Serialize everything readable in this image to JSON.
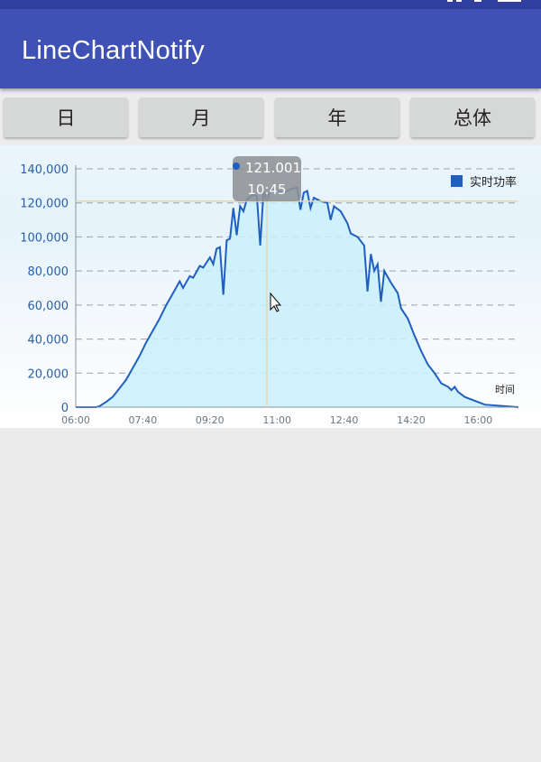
{
  "status_bar": {
    "icons": [
      "signal-icon",
      "battery-icon"
    ]
  },
  "app_bar": {
    "title": "LineChartNotify"
  },
  "tabs": [
    {
      "label": "日"
    },
    {
      "label": "月"
    },
    {
      "label": "年"
    },
    {
      "label": "总体"
    }
  ],
  "colors": {
    "primary": "#3f51b5",
    "primary_dark": "#303f9f",
    "series": "#1f5fbf",
    "fill": "#c9f0fb"
  },
  "tooltip": {
    "value": "121.001",
    "time": "10:45"
  },
  "chart_data": {
    "type": "area",
    "title": "",
    "xlabel": "时间",
    "ylabel": "",
    "legend": {
      "label": "实时功率",
      "position": "top-right"
    },
    "x_ticks": [
      "06:00",
      "07:40",
      "09:20",
      "11:00",
      "12:40",
      "14:20",
      "16:00"
    ],
    "y_ticks": [
      "0",
      "20,000",
      "40,000",
      "60,000",
      "80,000",
      "100,000",
      "120,000",
      "140,000"
    ],
    "ylim": [
      0,
      140000
    ],
    "xlim_minutes": [
      360,
      1020
    ],
    "highlight": {
      "x": "10:45",
      "y": 121001
    },
    "grid": "dashed-horizontal",
    "series": [
      {
        "name": "实时功率",
        "points": [
          [
            "06:00",
            0
          ],
          [
            "06:15",
            0
          ],
          [
            "06:30",
            0
          ],
          [
            "06:35",
            500
          ],
          [
            "06:45",
            3000
          ],
          [
            "06:55",
            6000
          ],
          [
            "07:05",
            11000
          ],
          [
            "07:15",
            16000
          ],
          [
            "07:25",
            23000
          ],
          [
            "07:35",
            30000
          ],
          [
            "07:45",
            38000
          ],
          [
            "07:55",
            45000
          ],
          [
            "08:05",
            52000
          ],
          [
            "08:15",
            60000
          ],
          [
            "08:25",
            67000
          ],
          [
            "08:35",
            74000
          ],
          [
            "08:40",
            70000
          ],
          [
            "08:50",
            77000
          ],
          [
            "08:55",
            76000
          ],
          [
            "09:05",
            83000
          ],
          [
            "09:10",
            82000
          ],
          [
            "09:20",
            88000
          ],
          [
            "09:25",
            84000
          ],
          [
            "09:30",
            93000
          ],
          [
            "09:35",
            94000
          ],
          [
            "09:40",
            66000
          ],
          [
            "09:45",
            98000
          ],
          [
            "09:50",
            99000
          ],
          [
            "09:55",
            117000
          ],
          [
            "10:00",
            101000
          ],
          [
            "10:05",
            118000
          ],
          [
            "10:10",
            115000
          ],
          [
            "10:15",
            122000
          ],
          [
            "10:25",
            125000
          ],
          [
            "10:30",
            124000
          ],
          [
            "10:35",
            95000
          ],
          [
            "10:40",
            127000
          ],
          [
            "10:45",
            121001
          ],
          [
            "10:50",
            128000
          ],
          [
            "11:00",
            127000
          ],
          [
            "11:10",
            126000
          ],
          [
            "11:20",
            128000
          ],
          [
            "11:30",
            129000
          ],
          [
            "11:35",
            116000
          ],
          [
            "11:40",
            126000
          ],
          [
            "11:45",
            127000
          ],
          [
            "11:50",
            117000
          ],
          [
            "11:55",
            123000
          ],
          [
            "12:05",
            121000
          ],
          [
            "12:15",
            120000
          ],
          [
            "12:20",
            110000
          ],
          [
            "12:25",
            118000
          ],
          [
            "12:35",
            115000
          ],
          [
            "12:45",
            108000
          ],
          [
            "12:50",
            102000
          ],
          [
            "13:00",
            100000
          ],
          [
            "13:10",
            95000
          ],
          [
            "13:15",
            68000
          ],
          [
            "13:20",
            90000
          ],
          [
            "13:25",
            80000
          ],
          [
            "13:30",
            84000
          ],
          [
            "13:35",
            62000
          ],
          [
            "13:40",
            80000
          ],
          [
            "13:50",
            73000
          ],
          [
            "14:00",
            67000
          ],
          [
            "14:05",
            58000
          ],
          [
            "14:15",
            52000
          ],
          [
            "14:25",
            42000
          ],
          [
            "14:35",
            33000
          ],
          [
            "14:45",
            25000
          ],
          [
            "14:55",
            20000
          ],
          [
            "15:05",
            14000
          ],
          [
            "15:15",
            12000
          ],
          [
            "15:20",
            10000
          ],
          [
            "15:25",
            12000
          ],
          [
            "15:30",
            9000
          ],
          [
            "15:40",
            6000
          ],
          [
            "16:10",
            1500
          ],
          [
            "17:00",
            0
          ]
        ]
      }
    ]
  }
}
